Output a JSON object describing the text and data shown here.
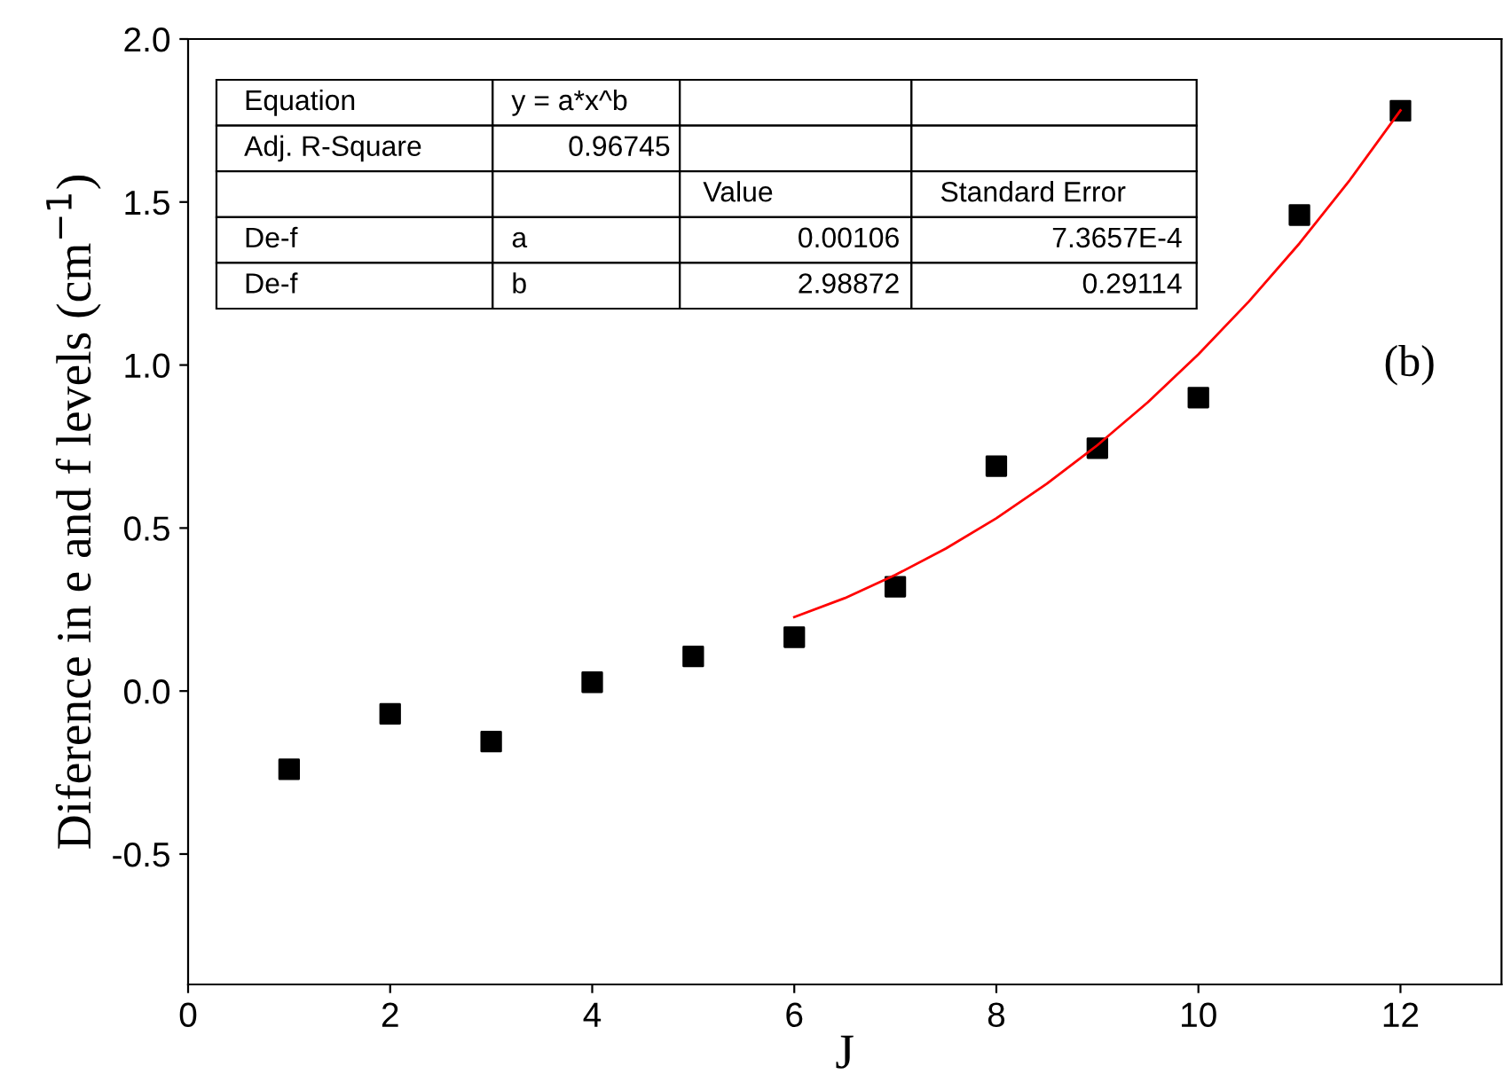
{
  "chart_data": {
    "type": "scatter",
    "xlabel": "J",
    "ylabel": "Diference in e and f levels (cm$^{−1}$)",
    "xlim": [
      0,
      13
    ],
    "ylim": [
      -0.9,
      2.0
    ],
    "xticks": [
      0,
      2,
      4,
      6,
      8,
      10,
      12
    ],
    "yticks": [
      {
        "value": -0.5,
        "label": "-0.5"
      },
      {
        "value": 0,
        "label": "0.0"
      },
      {
        "value": 0.5,
        "label": "0.5"
      },
      {
        "value": 1,
        "label": "1.0"
      },
      {
        "value": 1.5,
        "label": "1.5"
      },
      {
        "value": 2,
        "label": "2.0"
      }
    ],
    "grid": false,
    "legend": false,
    "series": [
      {
        "marker": "square",
        "color": "#000000",
        "x": [
          1,
          2,
          3,
          4,
          5,
          6,
          7,
          8,
          9,
          10,
          11,
          12
        ],
        "values": [
          -0.24,
          -0.07,
          -0.155,
          0.027,
          0.106,
          0.165,
          0.32,
          0.69,
          0.745,
          0.9,
          1.46,
          1.78
        ]
      },
      {
        "type": "line",
        "color": "#ff0000",
        "x": [
          6,
          6.5,
          7,
          7.5,
          8,
          8.5,
          9,
          9.5,
          10,
          10.5,
          11,
          11.5,
          12
        ],
        "values": [
          0.227,
          0.285,
          0.356,
          0.437,
          0.53,
          0.636,
          0.754,
          0.886,
          1.033,
          1.195,
          1.373,
          1.568,
          1.781
        ]
      }
    ],
    "annotations": [
      "(b)",
      "Equation",
      "y = a*x^b",
      "Adj. R-Square",
      "0.96745",
      "Value",
      "Standard Error",
      "De-f",
      "a",
      "0.00106",
      "7.3657E-4",
      "De-f",
      "b",
      "2.98872",
      "0.29114"
    ]
  }
}
